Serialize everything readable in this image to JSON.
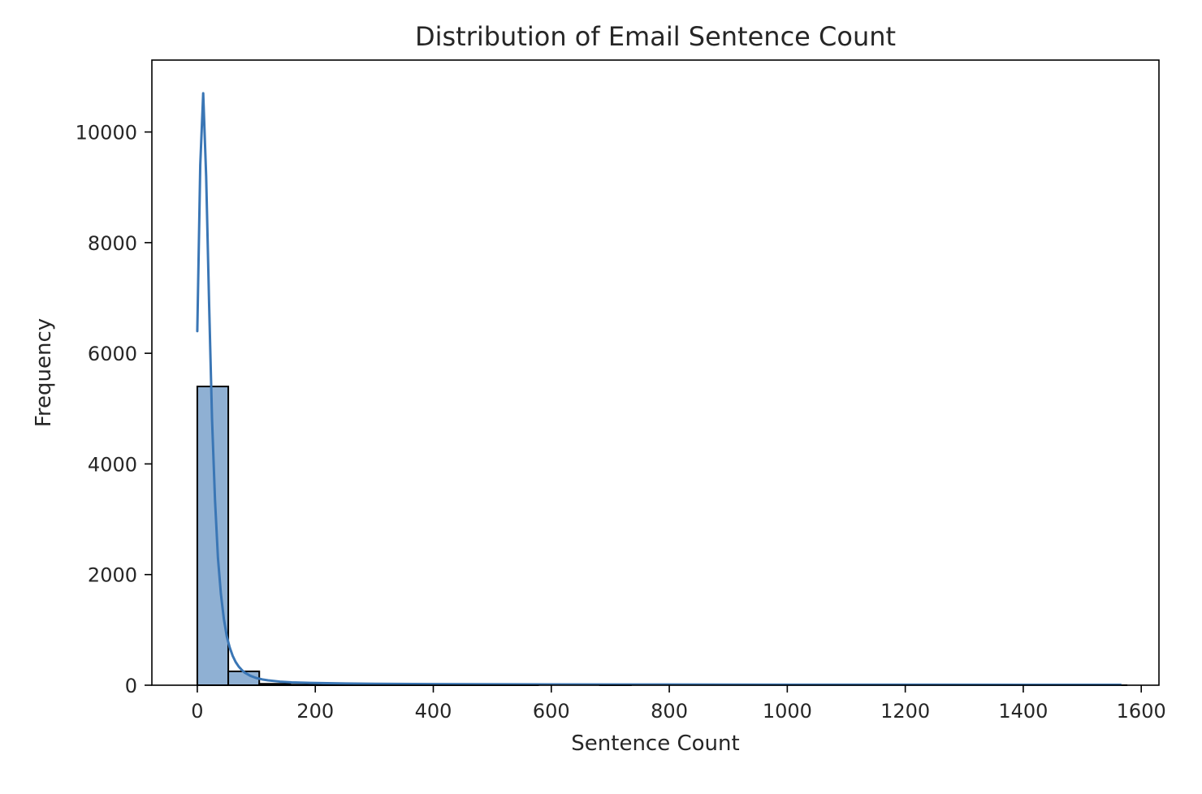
{
  "chart_data": {
    "type": "histogram",
    "title": "Distribution of Email Sentence Count",
    "xlabel": "Sentence Count",
    "ylabel": "Frequency",
    "xlim": [
      -77,
      1630
    ],
    "ylim": [
      0,
      11300
    ],
    "x_ticks": [
      0,
      200,
      400,
      600,
      800,
      1000,
      1200,
      1400,
      1600
    ],
    "y_ticks": [
      0,
      2000,
      4000,
      6000,
      8000,
      10000
    ],
    "grid": false,
    "legend": "none",
    "bin_width": 52.5,
    "bin_start": 0,
    "bins": [
      {
        "x0": 0,
        "x1": 52.5,
        "count": 5400
      },
      {
        "x0": 52.5,
        "x1": 105,
        "count": 250
      },
      {
        "x0": 105,
        "x1": 157.5,
        "count": 25
      },
      {
        "x0": 157.5,
        "x1": 210,
        "count": 10
      },
      {
        "x0": 210,
        "x1": 262.5,
        "count": 5
      },
      {
        "x0": 262.5,
        "x1": 315,
        "count": 3
      },
      {
        "x0": 315,
        "x1": 367.5,
        "count": 2
      },
      {
        "x0": 367.5,
        "x1": 420,
        "count": 2
      },
      {
        "x0": 420,
        "x1": 472.5,
        "count": 1
      },
      {
        "x0": 472.5,
        "x1": 525,
        "count": 1
      },
      {
        "x0": 525,
        "x1": 577.5,
        "count": 1
      },
      {
        "x0": 577.5,
        "x1": 630,
        "count": 0
      },
      {
        "x0": 630,
        "x1": 682.5,
        "count": 0
      },
      {
        "x0": 682.5,
        "x1": 735,
        "count": 1
      },
      {
        "x0": 735,
        "x1": 787.5,
        "count": 0
      },
      {
        "x0": 787.5,
        "x1": 840,
        "count": 0
      },
      {
        "x0": 840,
        "x1": 892.5,
        "count": 0
      },
      {
        "x0": 892.5,
        "x1": 945,
        "count": 0
      },
      {
        "x0": 945,
        "x1": 997.5,
        "count": 0
      },
      {
        "x0": 997.5,
        "x1": 1050,
        "count": 0
      },
      {
        "x0": 1050,
        "x1": 1102.5,
        "count": 0
      },
      {
        "x0": 1102.5,
        "x1": 1155,
        "count": 0
      },
      {
        "x0": 1155,
        "x1": 1207.5,
        "count": 0
      },
      {
        "x0": 1207.5,
        "x1": 1260,
        "count": 0
      },
      {
        "x0": 1260,
        "x1": 1312.5,
        "count": 0
      },
      {
        "x0": 1312.5,
        "x1": 1365,
        "count": 0
      },
      {
        "x0": 1365,
        "x1": 1417.5,
        "count": 0
      },
      {
        "x0": 1417.5,
        "x1": 1470,
        "count": 0
      },
      {
        "x0": 1470,
        "x1": 1522.5,
        "count": 0
      },
      {
        "x0": 1522.5,
        "x1": 1575,
        "count": 1
      }
    ],
    "kde": {
      "x": [
        0,
        5,
        10,
        15,
        20,
        25,
        30,
        35,
        40,
        45,
        50,
        55,
        60,
        65,
        70,
        75,
        80,
        90,
        100,
        110,
        120,
        140,
        160,
        200,
        250,
        300,
        400,
        600,
        800,
        1000,
        1200,
        1400,
        1565
      ],
      "y": [
        6400,
        9400,
        10700,
        9200,
        6900,
        4800,
        3350,
        2300,
        1650,
        1200,
        880,
        680,
        530,
        420,
        340,
        280,
        230,
        170,
        130,
        105,
        88,
        65,
        52,
        40,
        32,
        26,
        20,
        15,
        12,
        10,
        9,
        8,
        8
      ]
    },
    "colors": {
      "bar_fill": "#8fb0d3",
      "bar_edge": "#000000",
      "kde_line": "#3a76b5",
      "axes": "#000000",
      "text": "#262626"
    }
  }
}
